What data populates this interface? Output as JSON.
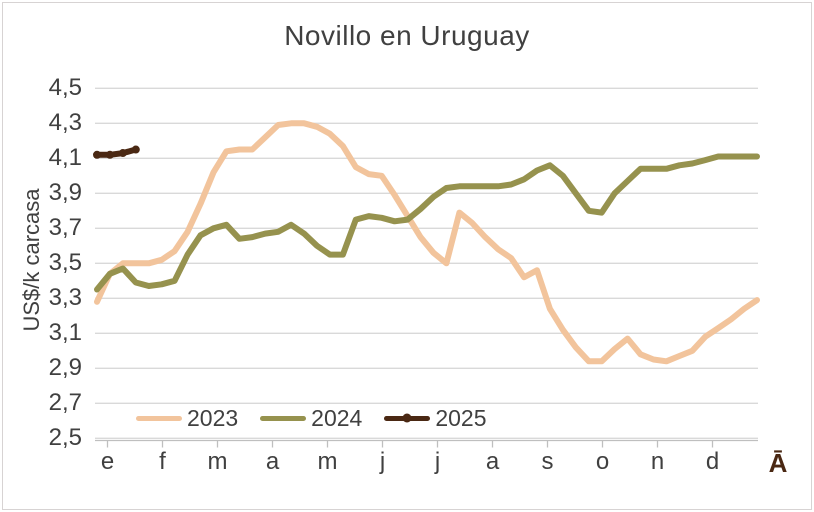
{
  "chart": {
    "frame_border_color": "#D7D3D3",
    "background": "#FFFFFF",
    "text_color": "#404040",
    "gridline_color": "#D9D9D9",
    "axis_line_color": "#BFBFBF"
  },
  "chart_data": {
    "type": "line",
    "title": "Novillo en Uruguay",
    "ylabel": "US$/k carcasa",
    "xlabel": "",
    "categories": [
      "e",
      "f",
      "m",
      "a",
      "m",
      "j",
      "j",
      "a",
      "s",
      "o",
      "n",
      "d"
    ],
    "axis_extra_label": "Ā",
    "x_unit": "weeks",
    "ylim": [
      2.5,
      4.5
    ],
    "y_tick_step": 0.2,
    "decimal_separator": ",",
    "grid": true,
    "legend_position": "bottom",
    "series": [
      {
        "name": "2023",
        "color": "#F2C49C",
        "marker": false,
        "values": [
          3.28,
          3.44,
          3.5,
          3.5,
          3.5,
          3.52,
          3.57,
          3.68,
          3.84,
          4.02,
          4.14,
          4.15,
          4.15,
          4.22,
          4.29,
          4.3,
          4.3,
          4.28,
          4.24,
          4.17,
          4.05,
          4.01,
          4.0,
          3.89,
          3.77,
          3.65,
          3.56,
          3.5,
          3.79,
          3.73,
          3.65,
          3.58,
          3.53,
          3.42,
          3.46,
          3.24,
          3.12,
          3.02,
          2.94,
          2.94,
          3.01,
          3.07,
          2.98,
          2.95,
          2.94,
          2.97,
          3.0,
          3.08,
          3.13,
          3.18,
          3.24,
          3.29
        ]
      },
      {
        "name": "2024",
        "color": "#96924E",
        "marker": false,
        "values": [
          3.35,
          3.44,
          3.47,
          3.39,
          3.37,
          3.38,
          3.4,
          3.55,
          3.66,
          3.7,
          3.72,
          3.64,
          3.65,
          3.67,
          3.68,
          3.72,
          3.67,
          3.6,
          3.55,
          3.55,
          3.75,
          3.77,
          3.76,
          3.74,
          3.75,
          3.81,
          3.88,
          3.93,
          3.94,
          3.94,
          3.94,
          3.94,
          3.95,
          3.98,
          4.03,
          4.06,
          4.0,
          3.9,
          3.8,
          3.79,
          3.9,
          3.97,
          4.04,
          4.04,
          4.04,
          4.06,
          4.07,
          4.09,
          4.11,
          4.11,
          4.11,
          4.11
        ]
      },
      {
        "name": "2025",
        "color": "#4A2813",
        "marker": true,
        "values": [
          4.12,
          4.12,
          4.13,
          4.15
        ]
      }
    ]
  }
}
